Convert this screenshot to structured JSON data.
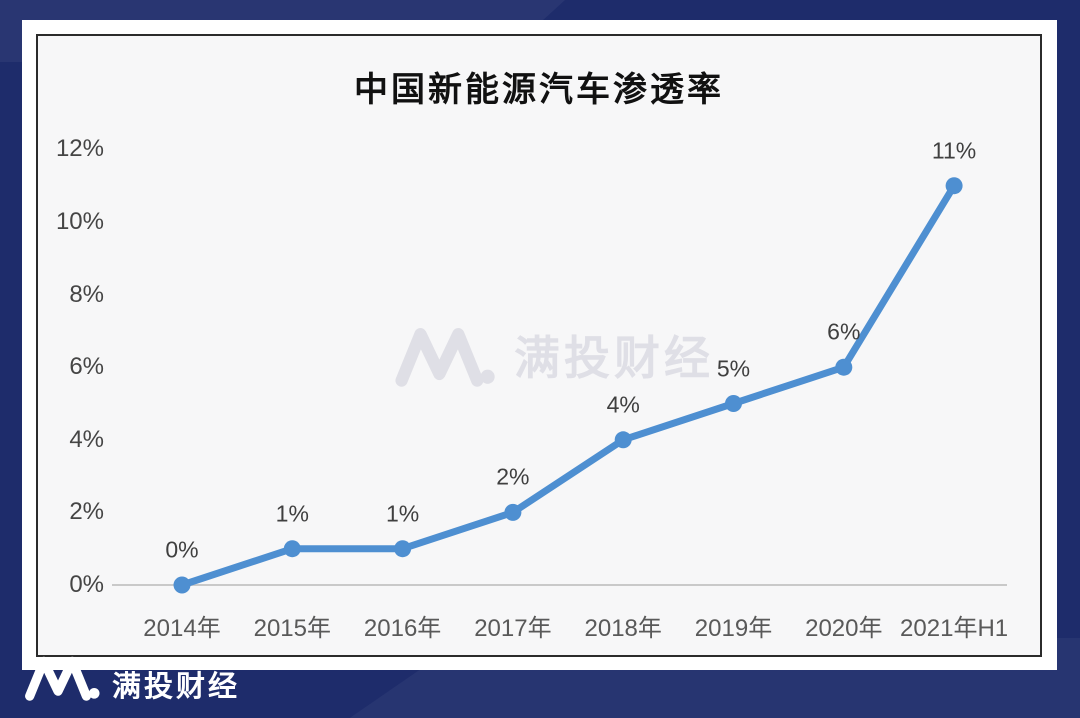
{
  "chart_data": {
    "type": "line",
    "title": "中国新能源汽车渗透率",
    "categories": [
      "2014年",
      "2015年",
      "2016年",
      "2017年",
      "2018年",
      "2019年",
      "2020年",
      "2021年H1"
    ],
    "values": [
      0,
      1,
      1,
      2,
      4,
      5,
      6,
      11
    ],
    "data_labels": [
      "0%",
      "1%",
      "1%",
      "2%",
      "4%",
      "5%",
      "6%",
      "11%"
    ],
    "unit": "%",
    "xlabel": "",
    "ylabel": "",
    "ylim": [
      0,
      12
    ],
    "ytick_values": [
      0,
      2,
      4,
      6,
      8,
      10,
      12
    ],
    "ytick_labels": [
      "0%",
      "2%",
      "4%",
      "6%",
      "8%",
      "10%",
      "12%"
    ],
    "grid": false,
    "legend": false,
    "line_color": "#4e8fd1",
    "marker_color": "#4e8fd1",
    "data_label_color": "#3f3f3f",
    "axis_line_color": "#c9c9c9",
    "tick_label_color": "#595959"
  },
  "watermark": {
    "brand": "满投财经",
    "logo": "m-dot-logo",
    "color": "#dedee5"
  },
  "footer": {
    "brand": "满投财经",
    "logo": "m-dot-logo",
    "text_color": "#ffffff"
  },
  "colors": {
    "background": "#1e2c6b",
    "card": "#ffffff",
    "plot_background": "#f7f7f8",
    "plot_border": "#2b2b2b"
  }
}
